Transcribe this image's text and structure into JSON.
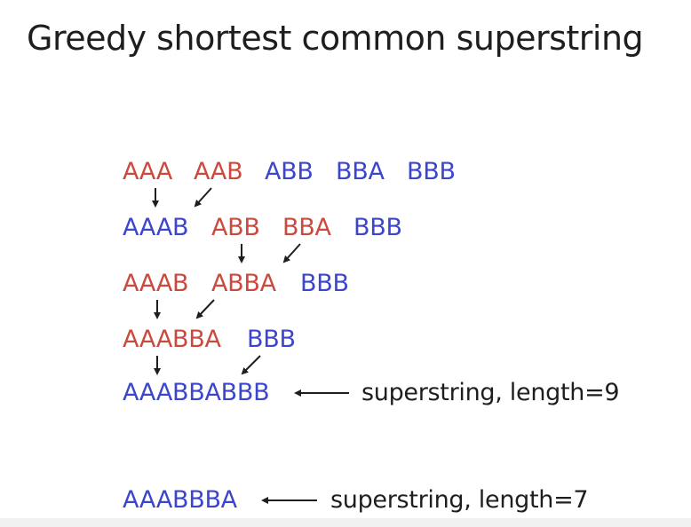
{
  "title": "Greedy shortest common superstring",
  "rows": [
    [
      {
        "text": "AAA",
        "color": "red"
      },
      {
        "text": "AAB",
        "color": "red"
      },
      {
        "text": "ABB",
        "color": "blue"
      },
      {
        "text": "BBA",
        "color": "blue"
      },
      {
        "text": "BBB",
        "color": "blue"
      }
    ],
    [
      {
        "text": "AAAB",
        "color": "blue"
      },
      {
        "text": "ABB",
        "color": "red"
      },
      {
        "text": "BBA",
        "color": "red"
      },
      {
        "text": "BBB",
        "color": "blue"
      }
    ],
    [
      {
        "text": "AAAB",
        "color": "red"
      },
      {
        "text": "ABBA",
        "color": "red"
      },
      {
        "text": "BBB",
        "color": "blue"
      }
    ],
    [
      {
        "text": "AAABBA",
        "color": "red"
      },
      {
        "text": "BBB",
        "color": "blue"
      }
    ],
    [
      {
        "text": "AAABBABBB",
        "color": "blue"
      }
    ],
    [
      {
        "text": "AAABBBA",
        "color": "blue"
      }
    ]
  ],
  "notes": {
    "result_greedy": "superstring, length=9",
    "result_shortest": "superstring, length=7"
  },
  "colors": {
    "red": "#cc4a3d",
    "blue": "#3c46cc",
    "text": "#1e1e1e"
  }
}
